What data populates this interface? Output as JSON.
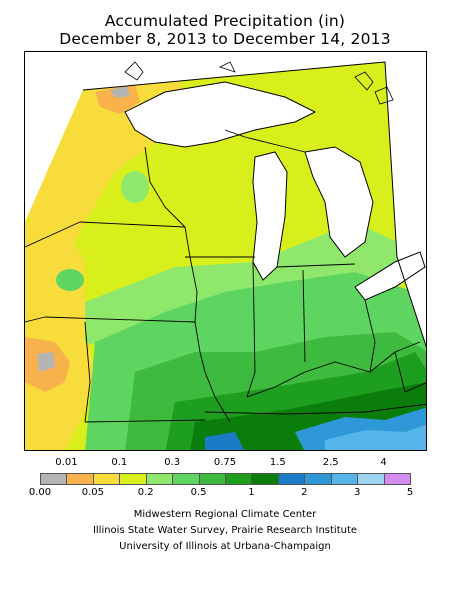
{
  "title": {
    "line1": "Accumulated Precipitation (in)",
    "line2": "December 8, 2013 to December 14, 2013"
  },
  "map": {
    "type": "precipitation-contour-map",
    "region": "Midwest United States",
    "boundaries": "state borders and Great Lakes"
  },
  "legend": {
    "bins": [
      {
        "value": "0.00",
        "color": "#b4b4b4"
      },
      {
        "value": "0.01",
        "color": "#f7b24c"
      },
      {
        "value": "0.05",
        "color": "#f7dc3c"
      },
      {
        "value": "0.1",
        "color": "#d9ef1c"
      },
      {
        "value": "0.2",
        "color": "#8fe86c"
      },
      {
        "value": "0.3",
        "color": "#5dd560"
      },
      {
        "value": "0.5",
        "color": "#3ebb3e"
      },
      {
        "value": "0.75",
        "color": "#1e9e1e"
      },
      {
        "value": "1",
        "color": "#0b7d0b"
      },
      {
        "value": "1.5",
        "color": "#1c7bc6"
      },
      {
        "value": "2",
        "color": "#2e98d8"
      },
      {
        "value": "2.5",
        "color": "#55b4e8"
      },
      {
        "value": "3",
        "color": "#9fd3f2"
      },
      {
        "value": "4",
        "color": "#d58bf0"
      },
      {
        "value": "5",
        "color": ""
      }
    ]
  },
  "credits": {
    "line1": "Midwestern Regional Climate Center",
    "line2": "Illinois State Water Survey, Prairie Research Institute",
    "line3": "University of Illinois at Urbana-Champaign"
  }
}
